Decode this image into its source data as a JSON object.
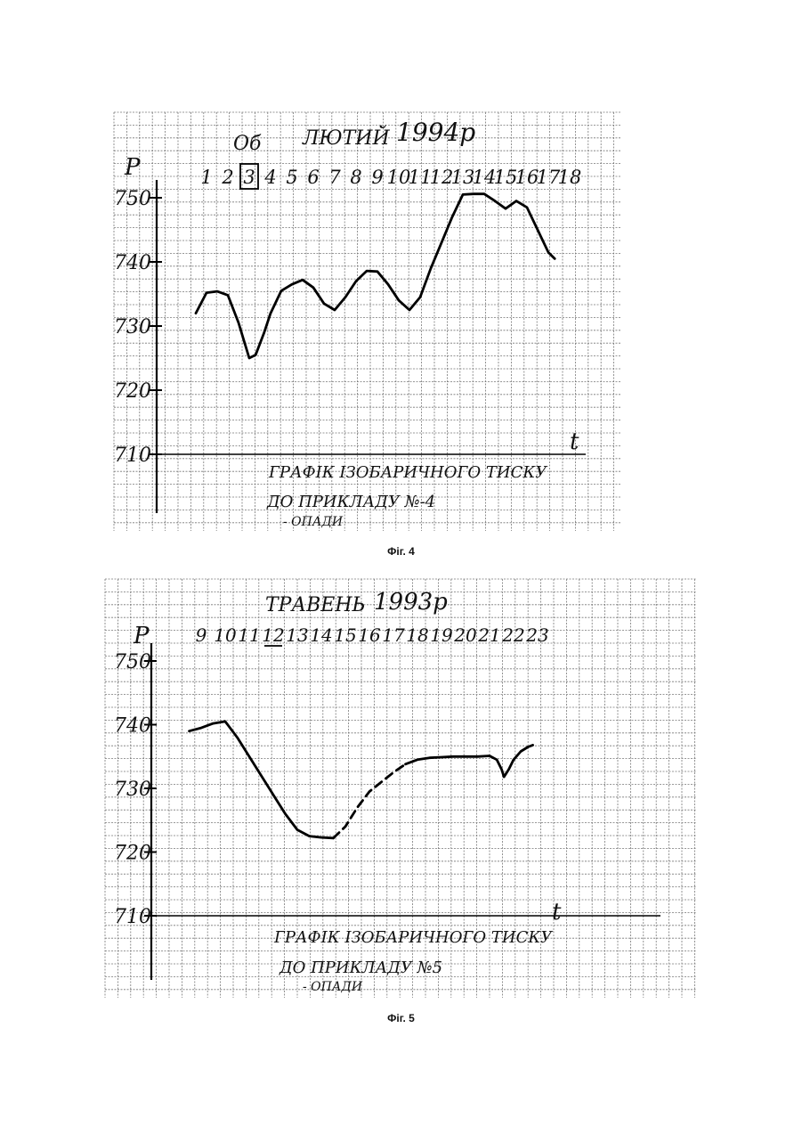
{
  "figures": [
    {
      "caption": "Фіг. 4",
      "header": {
        "word1": "Об",
        "word2": "ЛЮТИЙ",
        "year": "1994р"
      },
      "boxed_day": "3",
      "p_label": "P",
      "t_label": "t",
      "annotation": {
        "line1": "ГРАФІК ІЗОБАРИЧНОГО ТИСКУ",
        "line2": "ДО ПРИКЛАДУ №-4",
        "line3": "- ОПАДИ"
      },
      "chart_data": {
        "type": "line",
        "title": "ЛЮТИЙ 1994р",
        "xlabel": "t",
        "ylabel": "P",
        "x_ticks": [
          "1",
          "2",
          "3",
          "4",
          "5",
          "6",
          "7",
          "8",
          "9",
          "10",
          "11",
          "12",
          "13",
          "14",
          "15",
          "16",
          "17",
          "18"
        ],
        "y_ticks": [
          710,
          720,
          730,
          740,
          750
        ],
        "ylim": [
          710,
          750
        ],
        "xlim": [
          1,
          18
        ],
        "series": [
          {
            "style": "solid",
            "points": [
              [
                0.5,
                732
              ],
              [
                1.0,
                735.2
              ],
              [
                1.5,
                735.4
              ],
              [
                2.0,
                734.8
              ],
              [
                2.5,
                730.5
              ],
              [
                3.0,
                725
              ],
              [
                3.3,
                725.5
              ],
              [
                3.7,
                729
              ],
              [
                4.0,
                732
              ],
              [
                4.5,
                735.5
              ],
              [
                5.0,
                736.5
              ],
              [
                5.5,
                737.2
              ],
              [
                6.0,
                736
              ],
              [
                6.5,
                733.5
              ],
              [
                7.0,
                732.5
              ],
              [
                7.5,
                734.5
              ],
              [
                8.0,
                737
              ],
              [
                8.5,
                738.6
              ],
              [
                9.0,
                738.5
              ],
              [
                9.5,
                736.5
              ],
              [
                10.0,
                734
              ],
              [
                10.5,
                732.5
              ],
              [
                11.0,
                734.5
              ],
              [
                11.5,
                739
              ],
              [
                12.0,
                743
              ],
              [
                12.5,
                747
              ],
              [
                13.0,
                750.5
              ],
              [
                13.5,
                750.6
              ],
              [
                14.0,
                750.6
              ],
              [
                14.5,
                749.5
              ],
              [
                15.0,
                748.3
              ],
              [
                15.5,
                749.5
              ],
              [
                16.0,
                748.5
              ],
              [
                16.5,
                745
              ],
              [
                17.0,
                741.5
              ],
              [
                17.3,
                740.5
              ]
            ]
          }
        ]
      }
    },
    {
      "caption": "Фіг. 5",
      "header": {
        "word1": "ТРАВЕНЬ",
        "year": "1993р"
      },
      "underlined_day": "12",
      "p_label": "P",
      "t_label": "t",
      "annotation": {
        "line1": "ГРАФІК ІЗОБАРИЧНОГО ТИСКУ",
        "line2": "ДО ПРИКЛАДУ №5",
        "line3": "- ОПАДИ"
      },
      "chart_data": {
        "type": "line",
        "title": "ТРАВЕНЬ 1993р",
        "xlabel": "t",
        "ylabel": "P",
        "x_ticks": [
          "9",
          "10",
          "11",
          "12",
          "13",
          "14",
          "15",
          "16",
          "17",
          "18",
          "19",
          "20",
          "21",
          "22",
          "23"
        ],
        "y_ticks": [
          710,
          720,
          730,
          740,
          750
        ],
        "ylim": [
          710,
          750
        ],
        "xlim": [
          9,
          23
        ],
        "series": [
          {
            "style": "solid",
            "points": [
              [
                8.5,
                739
              ],
              [
                9.0,
                739.5
              ],
              [
                9.5,
                740.2
              ],
              [
                10.0,
                740.5
              ],
              [
                10.5,
                738
              ],
              [
                11.0,
                735
              ],
              [
                11.5,
                732
              ],
              [
                12.0,
                729
              ],
              [
                12.5,
                726
              ],
              [
                13.0,
                723.5
              ],
              [
                13.5,
                722.5
              ],
              [
                14.0,
                722.3
              ],
              [
                14.5,
                722.2
              ]
            ]
          },
          {
            "style": "dashed",
            "points": [
              [
                14.5,
                722.2
              ],
              [
                15.0,
                724
              ],
              [
                15.5,
                727
              ],
              [
                16.0,
                729.5
              ],
              [
                16.5,
                731
              ],
              [
                17.0,
                732.5
              ],
              [
                17.5,
                733.8
              ]
            ]
          },
          {
            "style": "solid",
            "points": [
              [
                17.5,
                733.8
              ],
              [
                18.0,
                734.5
              ],
              [
                18.5,
                734.8
              ],
              [
                19.0,
                734.9
              ],
              [
                19.5,
                735
              ],
              [
                20.0,
                735
              ],
              [
                20.5,
                735
              ],
              [
                21.0,
                735.1
              ],
              [
                21.3,
                734.5
              ],
              [
                21.5,
                733
              ],
              [
                21.6,
                731.8
              ],
              [
                21.8,
                733
              ],
              [
                22.0,
                734.5
              ],
              [
                22.3,
                735.8
              ],
              [
                22.6,
                736.5
              ],
              [
                22.8,
                736.8
              ]
            ]
          }
        ]
      }
    }
  ]
}
